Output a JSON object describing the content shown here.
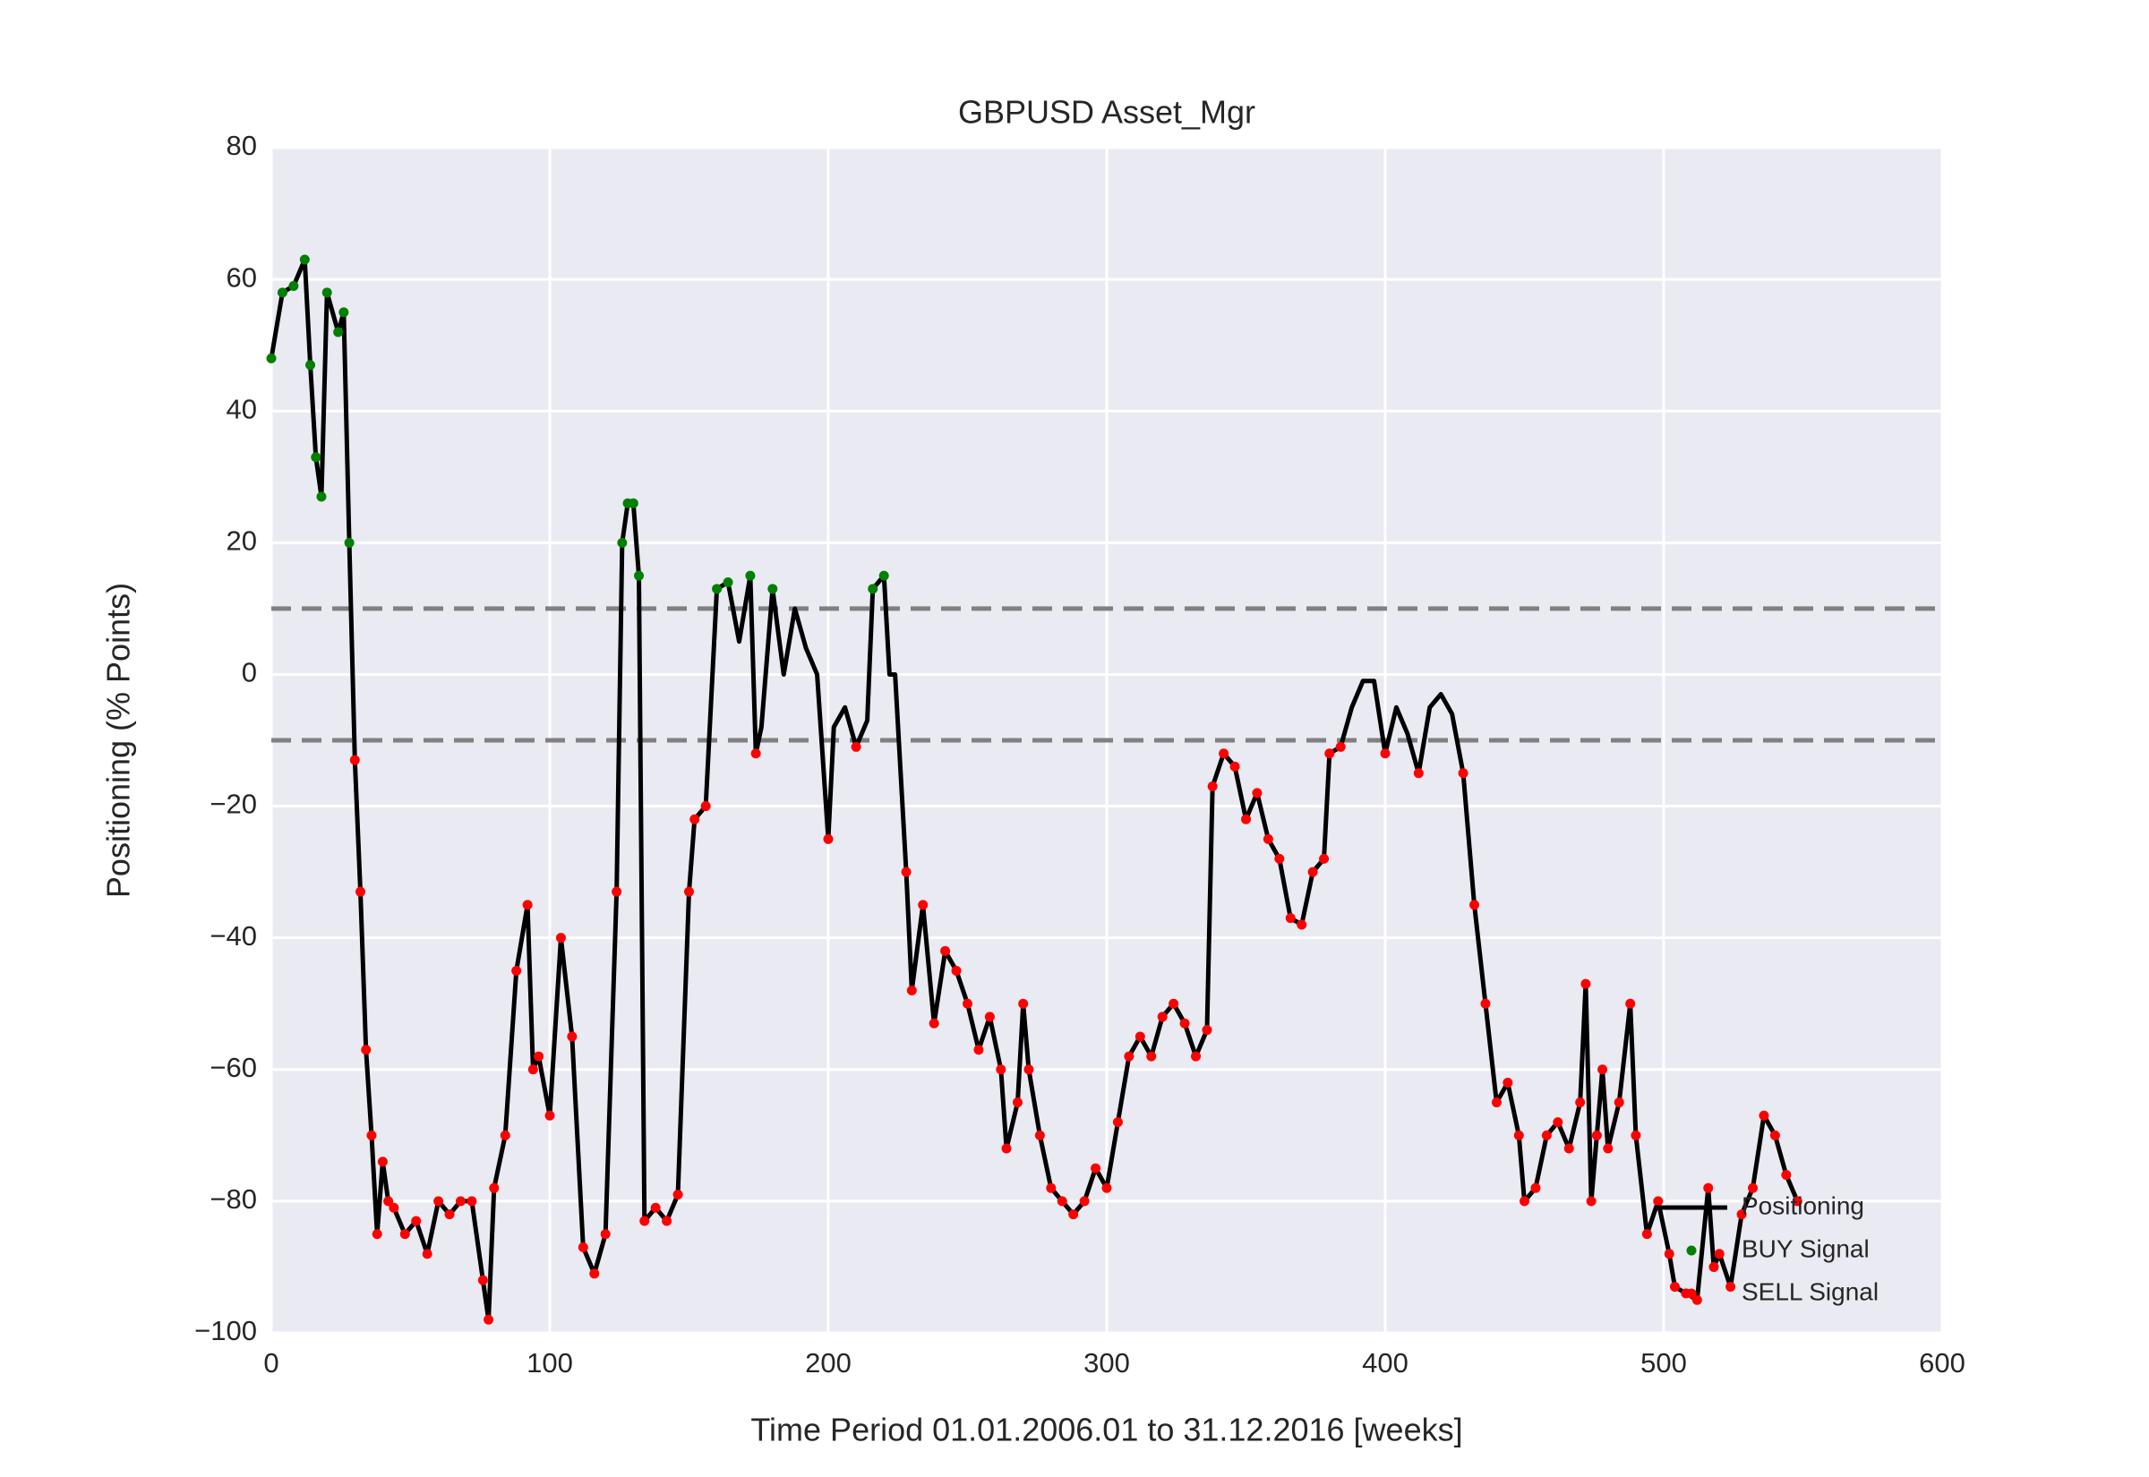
{
  "chart_data": {
    "type": "line",
    "title": "GBPUSD Asset_Mgr",
    "xlabel": "Time Period 01.01.2006.01 to 31.12.2016 [weeks]",
    "ylabel": "Positioning (% Points)",
    "x": [
      0,
      4,
      8,
      12,
      14,
      16,
      18,
      20,
      24,
      26,
      28,
      30,
      32,
      34,
      36,
      38,
      40,
      42,
      44,
      48,
      52,
      56,
      60,
      64,
      68,
      72,
      76,
      78,
      80,
      84,
      88,
      92,
      94,
      96,
      100,
      104,
      108,
      112,
      116,
      120,
      124,
      126,
      128,
      130,
      132,
      134,
      138,
      142,
      146,
      150,
      152,
      156,
      160,
      164,
      168,
      172,
      174,
      176,
      180,
      184,
      188,
      192,
      196,
      200,
      202,
      206,
      210,
      214,
      216,
      220,
      222,
      224,
      228,
      230,
      234,
      238,
      242,
      246,
      250,
      254,
      258,
      262,
      264,
      268,
      270,
      272,
      276,
      280,
      284,
      288,
      292,
      296,
      300,
      304,
      308,
      312,
      316,
      320,
      324,
      328,
      332,
      336,
      338,
      342,
      346,
      350,
      354,
      358,
      362,
      366,
      370,
      374,
      378,
      380,
      384,
      388,
      392,
      396,
      400,
      404,
      408,
      412,
      416,
      420,
      424,
      428,
      432,
      436,
      440,
      444,
      448,
      450,
      454,
      458,
      462,
      466,
      470,
      472,
      474,
      476,
      478,
      480,
      484,
      488,
      490,
      494,
      498,
      502,
      504,
      508,
      512,
      516,
      518,
      520,
      524,
      528,
      532,
      536,
      540,
      544,
      548
    ],
    "series": [
      {
        "name": "Positioning",
        "color": "#000000",
        "values": [
          48,
          58,
          59,
          63,
          47,
          33,
          27,
          58,
          52,
          55,
          20,
          -13,
          -33,
          -57,
          -70,
          -85,
          -74,
          -80,
          -81,
          -85,
          -83,
          -88,
          -80,
          -82,
          -80,
          -80,
          -92,
          -98,
          -78,
          -70,
          -45,
          -35,
          -60,
          -58,
          -67,
          -40,
          -55,
          -87,
          -91,
          -85,
          -33,
          20,
          26,
          26,
          15,
          -83,
          -81,
          -83,
          -79,
          -33,
          -22,
          -20,
          13,
          14,
          5,
          15,
          -12,
          -8,
          13,
          0,
          10,
          4,
          0,
          -25,
          -8,
          -5,
          -11,
          -7,
          13,
          15,
          0,
          0,
          -30,
          -48,
          -35,
          -53,
          -42,
          -45,
          -50,
          -57,
          -52,
          -60,
          -72,
          -65,
          -50,
          -60,
          -70,
          -78,
          -80,
          -82,
          -80,
          -75,
          -78,
          -68,
          -58,
          -55,
          -58,
          -52,
          -50,
          -53,
          -58,
          -54,
          -17,
          -12,
          -14,
          -22,
          -18,
          -25,
          -28,
          -37,
          -38,
          -30,
          -28,
          -12,
          -11,
          -5,
          -1,
          -1,
          -12,
          -5,
          -9,
          -15,
          -5,
          -3,
          -6,
          -15,
          -35,
          -50,
          -65,
          -62,
          -70,
          -80,
          -78,
          -70,
          -68,
          -72,
          -65,
          -47,
          -80,
          -70,
          -60,
          -72,
          -65,
          -50,
          -70,
          -85,
          -80,
          -88,
          -93,
          -94,
          -95,
          -78,
          -90,
          -88,
          -93,
          -82,
          -78,
          -67,
          -70,
          -76,
          -80
        ]
      }
    ],
    "signals": [
      {
        "name": "BUY Signal",
        "color": "#008000",
        "threshold": 10,
        "side": "above"
      },
      {
        "name": "SELL Signal",
        "color": "#ff0000",
        "threshold": -10,
        "side": "below"
      }
    ],
    "xlim": [
      0,
      600
    ],
    "xticks": [
      0,
      100,
      200,
      300,
      400,
      500,
      600
    ],
    "ylim": [
      -100,
      80
    ],
    "yticks": [
      {
        "value": -100,
        "label": "−100"
      },
      {
        "value": -80,
        "label": "−80"
      },
      {
        "value": -60,
        "label": "−60"
      },
      {
        "value": -40,
        "label": "−40"
      },
      {
        "value": -20,
        "label": "−20"
      },
      0,
      20,
      40,
      60,
      80
    ],
    "grid": true,
    "legend": "lower right"
  }
}
